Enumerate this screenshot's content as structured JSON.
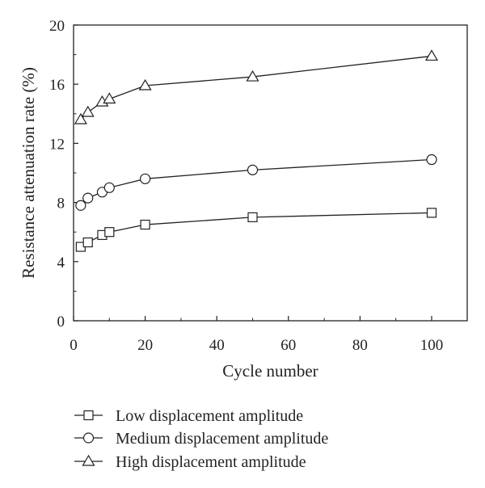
{
  "chart_data": {
    "type": "line",
    "xlabel": "Cycle number",
    "ylabel": "Resistance attenuation rate (%)",
    "xlim": [
      0,
      110
    ],
    "ylim": [
      0,
      20
    ],
    "xticks": [
      0,
      20,
      40,
      60,
      80,
      100
    ],
    "yticks": [
      0,
      4,
      8,
      12,
      16,
      20
    ],
    "grid": false,
    "legend_position": "bottom",
    "series": [
      {
        "name": "Low displacement amplitude",
        "marker": "square",
        "x": [
          2,
          4,
          8,
          10,
          20,
          50,
          100
        ],
        "y": [
          5.0,
          5.3,
          5.8,
          6.0,
          6.5,
          7.0,
          7.3
        ]
      },
      {
        "name": "Medium displacement amplitude",
        "marker": "circle",
        "x": [
          2,
          4,
          8,
          10,
          20,
          50,
          100
        ],
        "y": [
          7.8,
          8.3,
          8.7,
          9.0,
          9.6,
          10.2,
          10.9
        ]
      },
      {
        "name": "High displacement amplitude",
        "marker": "triangle",
        "x": [
          2,
          4,
          8,
          10,
          20,
          50,
          100
        ],
        "y": [
          13.6,
          14.1,
          14.8,
          15.0,
          15.9,
          16.5,
          17.9
        ]
      }
    ]
  }
}
